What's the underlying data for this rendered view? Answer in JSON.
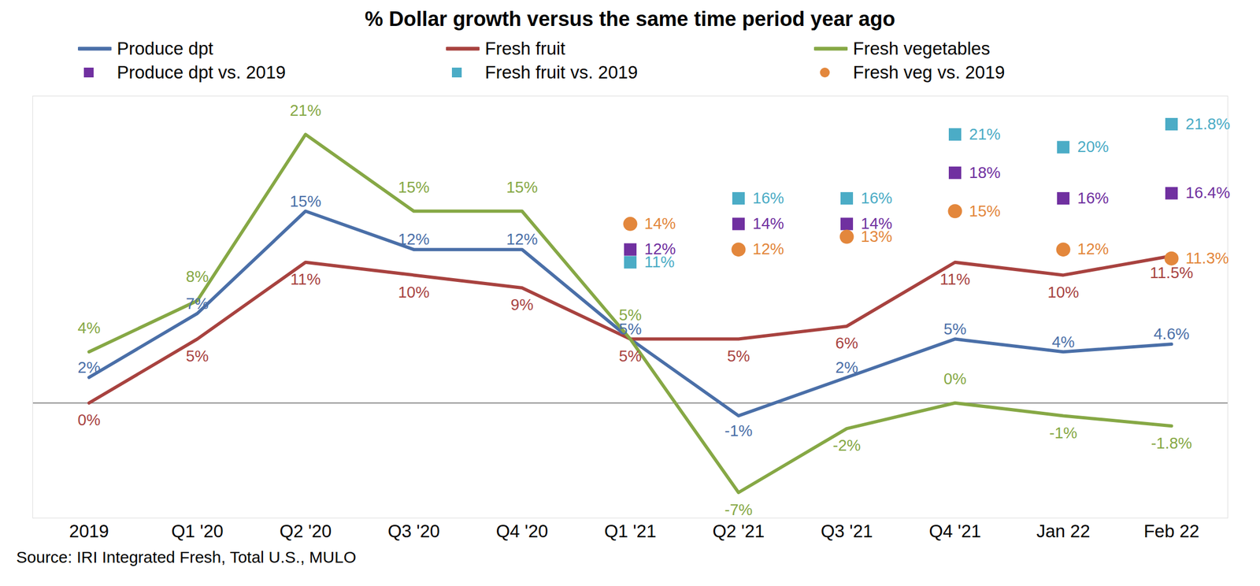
{
  "chart_data": {
    "type": "line",
    "title": "% Dollar growth versus the same time period year ago",
    "caption": "Source: IRI Integrated Fresh, Total U.S., MULO",
    "categories": [
      "2019",
      "Q1 '20",
      "Q2 '20",
      "Q3 '20",
      "Q4 '20",
      "Q1 '21",
      "Q2 '21",
      "Q3 '21",
      "Q4 '21",
      "Jan 22",
      "Feb 22"
    ],
    "series": [
      {
        "name": "Produce dpt",
        "type": "line",
        "line_style": "solid",
        "color": "#4a6fa8",
        "values": [
          2,
          7,
          15,
          12,
          12,
          5,
          -1,
          2,
          5,
          4,
          4.6
        ],
        "value_labels": [
          "2%",
          "7%",
          "15%",
          "12%",
          "12%",
          "5%",
          "-1%",
          "2%",
          "5%",
          "4%",
          "4.6%"
        ]
      },
      {
        "name": "Fresh fruit",
        "type": "line",
        "line_style": "solid",
        "color": "#a8423f",
        "values": [
          0,
          5,
          11,
          10,
          9,
          5,
          5,
          6,
          11,
          10,
          11.5
        ],
        "value_labels": [
          "0%",
          "5%",
          "11%",
          "10%",
          "9%",
          "5%",
          "5%",
          "6%",
          "11%",
          "10%",
          "11.5%"
        ]
      },
      {
        "name": "Fresh vegetables",
        "type": "line",
        "line_style": "solid",
        "color": "#86a845",
        "values": [
          4,
          8,
          21,
          15,
          15,
          5,
          -7,
          -2,
          0,
          -1,
          -1.8
        ],
        "value_labels": [
          "4%",
          "8%",
          "21%",
          "15%",
          "15%",
          "5%",
          "-7%",
          "-2%",
          "0%",
          "-1%",
          "-1.8%"
        ]
      },
      {
        "name": "Produce dpt vs. 2019",
        "type": "scatter",
        "marker": "square",
        "color": "#7030a0",
        "values": [
          null,
          null,
          null,
          null,
          null,
          12,
          14,
          14,
          18,
          16,
          16.4
        ],
        "value_labels": [
          null,
          null,
          null,
          null,
          null,
          "12%",
          "14%",
          "14%",
          "18%",
          "16%",
          "16.4%"
        ]
      },
      {
        "name": "Fresh fruit vs. 2019",
        "type": "scatter",
        "marker": "square",
        "color": "#4bacc6",
        "values": [
          null,
          null,
          null,
          null,
          null,
          11,
          16,
          16,
          21,
          20,
          21.8
        ],
        "value_labels": [
          null,
          null,
          null,
          null,
          null,
          "11%",
          "16%",
          "16%",
          "21%",
          "20%",
          "21.8%"
        ]
      },
      {
        "name": "Fresh veg vs. 2019",
        "type": "scatter",
        "marker": "circle",
        "color": "#e3873c",
        "values": [
          null,
          null,
          null,
          null,
          null,
          14,
          12,
          13,
          15,
          12,
          11.3
        ],
        "value_labels": [
          null,
          null,
          null,
          null,
          null,
          "14%",
          "12%",
          "13%",
          "15%",
          "12%",
          "11.3%"
        ]
      }
    ],
    "ylim": [
      -9,
      24
    ],
    "yticks": [
      0
    ],
    "grid": true,
    "tick_labels": "x",
    "data_labels": true,
    "legend": "top"
  }
}
